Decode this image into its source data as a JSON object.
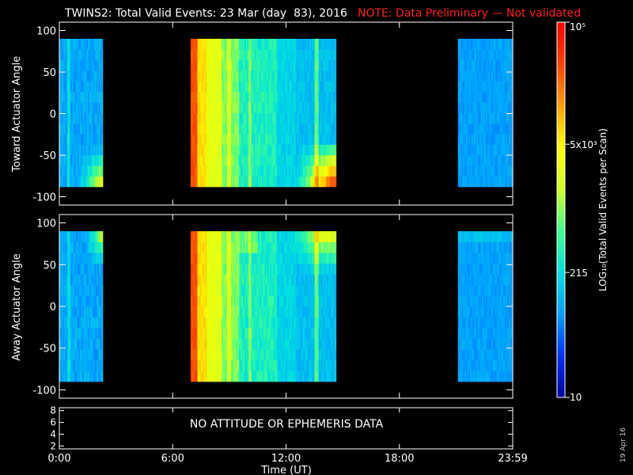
{
  "header": {
    "title": "TWINS2: Total Valid Events: 23 Mar (day  83), 2016",
    "note": "NOTE: Data Preliminary — Not validated",
    "note_color": "#ff2020"
  },
  "footer": {
    "date_stamp": "19 Apr 16"
  },
  "chart_data": [
    {
      "type": "heatmap",
      "panel": "toward",
      "ylabel": "Toward Actuator Angle",
      "ylim": [
        -110,
        110
      ],
      "y_ticks": [
        "100",
        "50",
        "0",
        "-50",
        "-100"
      ],
      "y_tick_values": [
        100,
        50,
        0,
        -50,
        -100
      ],
      "xlim_hours": [
        0,
        24
      ],
      "data_y_range": [
        -88,
        90
      ],
      "data_intervals_hours": [
        [
          0.0,
          2.3
        ],
        [
          6.95,
          14.65
        ],
        [
          21.1,
          24.0
        ]
      ],
      "grid": false
    },
    {
      "type": "heatmap",
      "panel": "away",
      "ylabel": "Away Actuator Angle",
      "ylim": [
        -110,
        110
      ],
      "y_ticks": [
        "100",
        "50",
        "0",
        "-50",
        "-100"
      ],
      "y_tick_values": [
        100,
        50,
        0,
        -50,
        -100
      ],
      "xlim_hours": [
        0,
        24
      ],
      "data_y_range": [
        -90,
        90
      ],
      "data_intervals_hours": [
        [
          0.0,
          2.3
        ],
        [
          6.95,
          14.65
        ],
        [
          21.1,
          24.0
        ]
      ],
      "grid": false
    },
    {
      "type": "line",
      "panel": "attitude",
      "y_ticks": [
        "8",
        "6",
        "4",
        "2"
      ],
      "y_tick_values": [
        8,
        6,
        4,
        2
      ],
      "ylim": [
        1.5,
        8.5
      ],
      "message": "NO ATTITUDE OR EPHEMERIS DATA"
    }
  ],
  "x_axis": {
    "label": "Time (UT)",
    "tick_labels": [
      "0:00",
      "6:00",
      "12:00",
      "18:00",
      "23:59"
    ],
    "tick_hours": [
      0,
      6,
      12,
      18,
      24
    ]
  },
  "colorbar": {
    "label": "LOG₁₀(Total Valid Events per Scan)",
    "scale": "log",
    "range": [
      10,
      100000
    ],
    "tick_labels": [
      "10⁵",
      "5x10³",
      "215",
      "10"
    ],
    "tick_values": [
      100000,
      5000,
      215,
      10
    ],
    "colors": [
      "#0000a0",
      "#0030ff",
      "#00a0ff",
      "#00e0e0",
      "#40ff90",
      "#d0ff20",
      "#ffff00",
      "#ffa000",
      "#ff4000",
      "#ff0000"
    ]
  }
}
